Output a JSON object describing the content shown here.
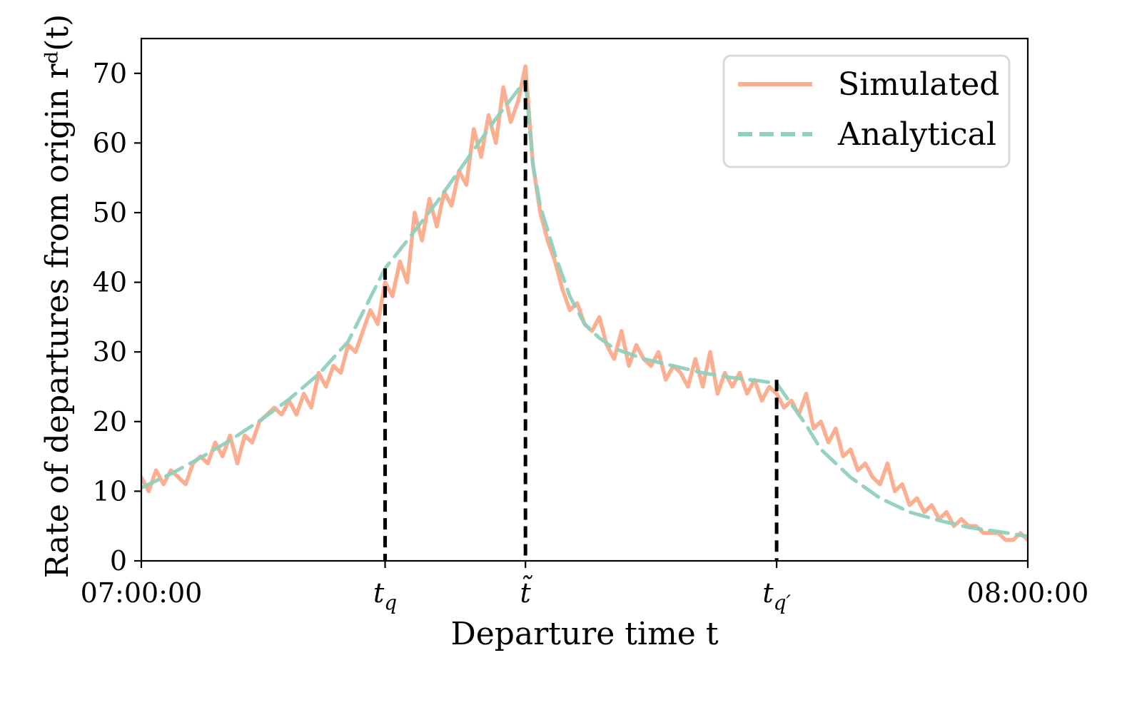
{
  "chart_data": {
    "type": "line",
    "xlabel": "Departure time t",
    "ylabel": "Rate of departures from origin rᵈ(t)",
    "xlim": [
      0,
      60
    ],
    "ylim": [
      0,
      75
    ],
    "x_unit": "minutes after 07:00:00",
    "grid": false,
    "legend_position": "top-right",
    "y_ticks": [
      0,
      10,
      20,
      30,
      40,
      50,
      60,
      70
    ],
    "y_tick_labels": [
      "0",
      "10",
      "20",
      "30",
      "40",
      "50",
      "60",
      "70"
    ],
    "x_ticks": [
      {
        "value": 0,
        "label": "07:00:00",
        "subscript": ""
      },
      {
        "value": 16.5,
        "label": "t",
        "subscript": "q"
      },
      {
        "value": 26.0,
        "label": "t̃",
        "subscript": ""
      },
      {
        "value": 43.0,
        "label": "t",
        "subscript": "q′"
      },
      {
        "value": 60,
        "label": "08:00:00",
        "subscript": ""
      }
    ],
    "vlines": [
      {
        "label": "t_q",
        "x": 16.5,
        "y": 42
      },
      {
        "label": "t̃",
        "x": 26.0,
        "y": 69
      },
      {
        "label": "t_q'",
        "x": 43.0,
        "y": 26
      }
    ],
    "series": [
      {
        "name": "Simulated",
        "color": "#fcae91",
        "style": "solid",
        "x": [
          0,
          0.5,
          1,
          1.5,
          2,
          2.5,
          3,
          3.5,
          4,
          4.5,
          5,
          5.5,
          6,
          6.5,
          7,
          7.5,
          8,
          8.5,
          9,
          9.5,
          10,
          10.5,
          11,
          11.5,
          12,
          12.5,
          13,
          13.5,
          14,
          14.5,
          15,
          15.5,
          16,
          16.5,
          17,
          17.5,
          18,
          18.5,
          19,
          19.5,
          20,
          20.5,
          21,
          21.5,
          22,
          22.5,
          23,
          23.5,
          24,
          24.5,
          25,
          25.5,
          26,
          26.5,
          27,
          27.5,
          28,
          28.5,
          29,
          29.5,
          30,
          30.5,
          31,
          31.5,
          32,
          32.5,
          33,
          33.5,
          34,
          34.5,
          35,
          35.5,
          36,
          36.5,
          37,
          37.5,
          38,
          38.5,
          39,
          39.5,
          40,
          40.5,
          41,
          41.5,
          42,
          42.5,
          43,
          43.5,
          44,
          44.5,
          45,
          45.5,
          46,
          46.5,
          47,
          47.5,
          48,
          48.5,
          49,
          49.5,
          50,
          50.5,
          51,
          51.5,
          52,
          52.5,
          53,
          53.5,
          54,
          54.5,
          55,
          55.5,
          56,
          56.5,
          57,
          57.5,
          58,
          58.5,
          59,
          59.5,
          60
        ],
        "y": [
          12,
          10,
          13,
          11,
          13,
          12,
          11,
          14,
          15,
          14,
          17,
          15,
          18,
          14,
          18,
          17,
          20,
          21,
          22,
          21,
          23,
          21,
          24,
          22,
          27,
          25,
          28,
          27,
          31,
          30,
          33,
          36,
          34,
          40,
          38,
          43,
          40,
          50,
          46,
          52,
          48,
          53,
          51,
          56,
          54,
          62,
          58,
          64,
          60,
          68,
          63,
          66,
          71,
          57,
          50,
          46,
          43,
          39,
          36,
          37,
          34,
          33,
          35,
          31,
          29,
          33,
          28,
          31,
          29,
          28,
          30,
          26,
          28,
          27,
          25,
          29,
          25,
          30,
          24,
          27,
          25,
          27,
          24,
          26,
          23,
          25,
          24,
          22,
          23,
          21,
          24,
          19,
          20,
          17,
          19,
          15,
          16,
          13,
          14,
          12,
          11,
          14,
          10,
          11,
          8,
          9,
          7,
          8,
          6,
          7,
          5,
          6,
          5,
          5,
          4,
          4,
          4,
          3,
          3,
          4,
          3
        ]
      },
      {
        "name": "Analytical",
        "color": "#8fd1bd",
        "style": "dashed",
        "x": [
          0,
          2,
          4,
          6,
          8,
          10,
          12,
          14,
          16.5,
          18,
          20,
          22,
          24,
          26,
          26.5,
          27,
          28,
          29,
          30,
          31,
          32,
          34,
          36,
          38,
          40,
          42,
          43,
          44,
          45,
          46,
          48,
          50,
          52,
          54,
          56,
          58,
          60
        ],
        "y": [
          10.5,
          12.5,
          14.8,
          17.3,
          20.1,
          23.2,
          26.8,
          31.5,
          42,
          46,
          51.5,
          57.5,
          63.5,
          69,
          57,
          51,
          44,
          38,
          34,
          32,
          30.5,
          29,
          28,
          27,
          26.3,
          25.8,
          25.5,
          22.5,
          19.5,
          16,
          12,
          9,
          7,
          5.8,
          4.8,
          4.2,
          3.5
        ]
      }
    ]
  }
}
